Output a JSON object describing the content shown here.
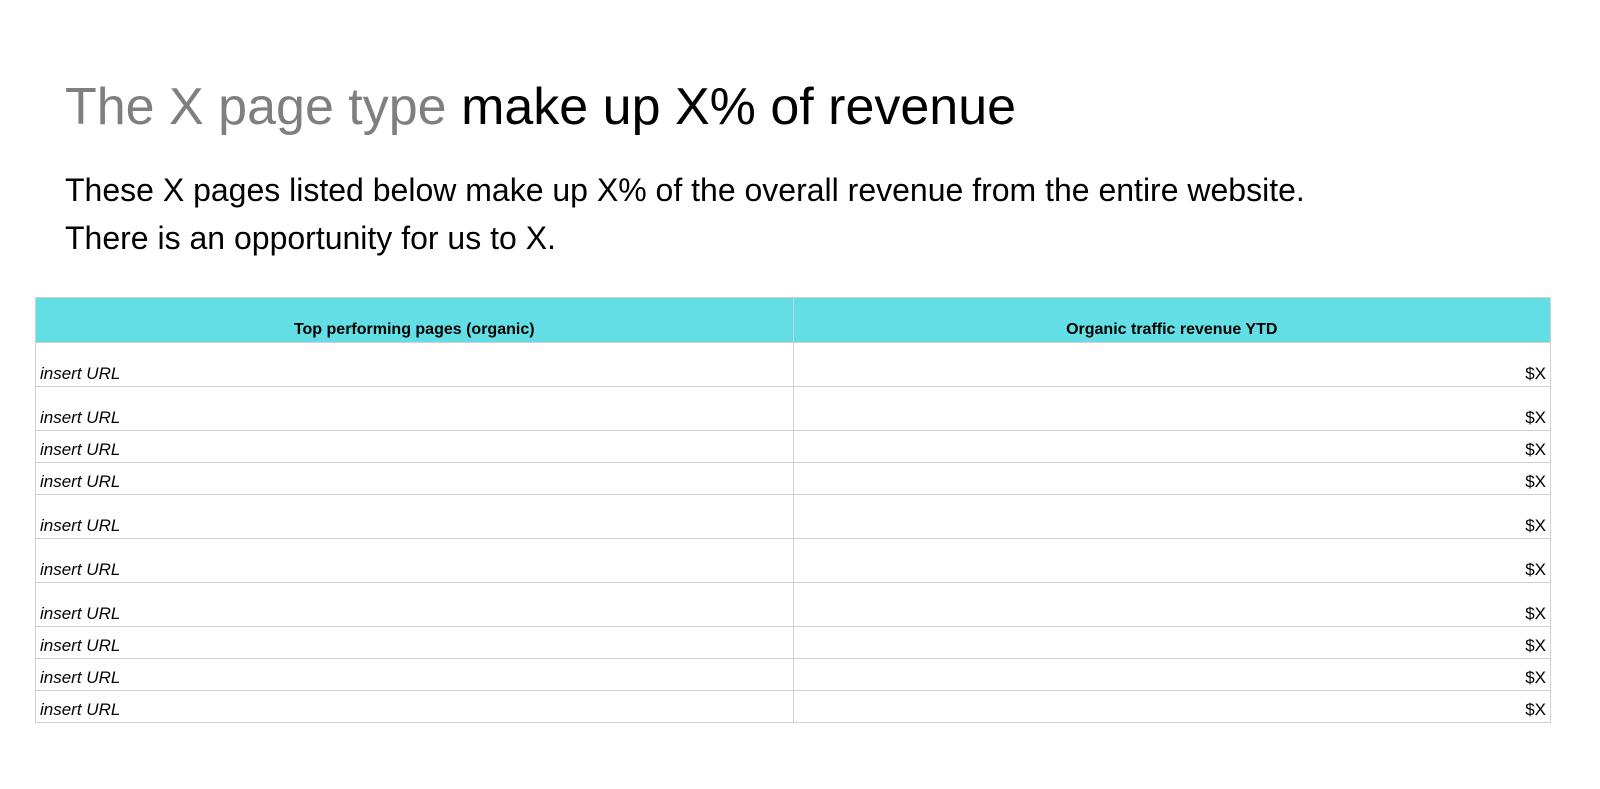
{
  "title": {
    "part1": "The X page type",
    "part2": "make up X% of revenue"
  },
  "body": {
    "line1": "These X pages listed below make up X% of the overall revenue from the entire website.",
    "line2": "There is an opportunity for us to X."
  },
  "table": {
    "headers": [
      "Top performing pages (organic)",
      "Organic traffic revenue YTD"
    ],
    "rows": [
      {
        "url": "insert URL",
        "revenue": "$X"
      },
      {
        "url": "insert URL",
        "revenue": "$X"
      },
      {
        "url": "insert URL",
        "revenue": "$X"
      },
      {
        "url": "insert URL",
        "revenue": "$X"
      },
      {
        "url": "insert URL",
        "revenue": "$X"
      },
      {
        "url": "insert URL",
        "revenue": "$X"
      },
      {
        "url": "insert URL",
        "revenue": "$X"
      },
      {
        "url": "insert URL",
        "revenue": "$X"
      },
      {
        "url": "insert URL",
        "revenue": "$X"
      },
      {
        "url": "insert URL",
        "revenue": "$X"
      }
    ]
  },
  "colors": {
    "header_bg": "#62dee4",
    "title_gray": "#7f7f7f",
    "grid": "#d0d0d0"
  }
}
